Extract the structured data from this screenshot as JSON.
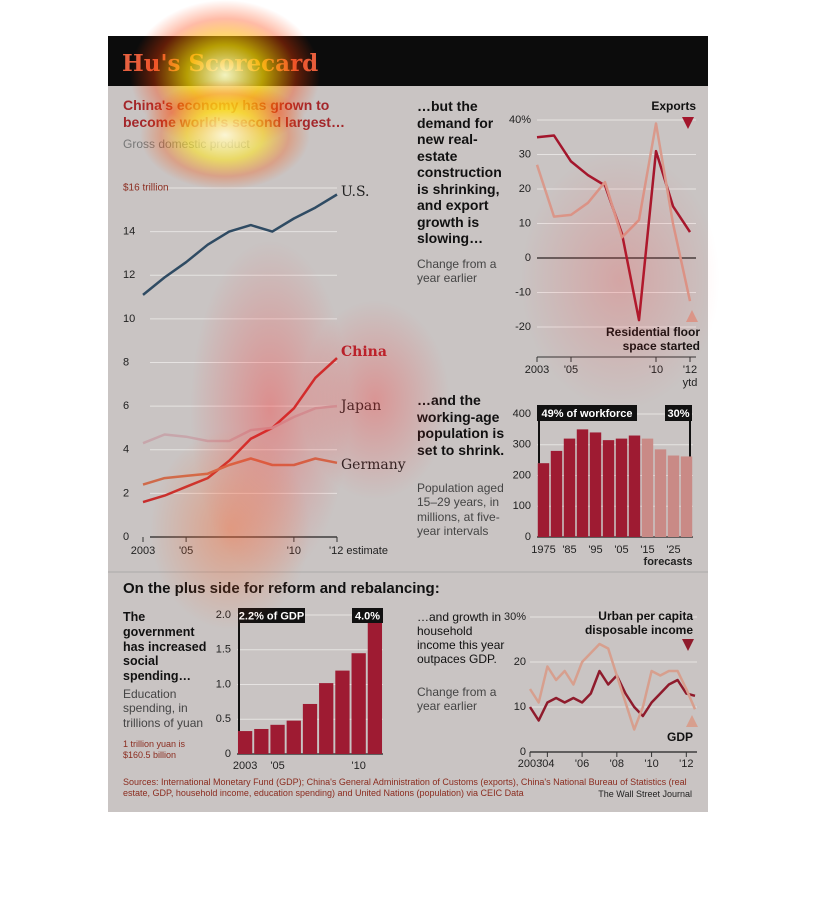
{
  "title": "Hu's Scorecard",
  "section_title": "On the plus side for reform and rebalancing:",
  "source": "Sources: International Monetary Fund (GDP); China's General Administration of Customs (exports), China's National Bureau of Statistics (real estate, GDP, household income, education spending) and United Nations (population) via CEIC Data",
  "credit": "The Wall Street Journal",
  "chart_data": [
    {
      "type": "line",
      "title": "China's economy has grown to become world's second largest…",
      "subtitle": "Gross domestic product",
      "x": [
        2003,
        2004,
        2005,
        2006,
        2007,
        2008,
        2009,
        2010,
        2011,
        2012
      ],
      "xlim": [
        2003,
        2012
      ],
      "xticks": [
        2003,
        {
          "value": 2005,
          "label": "'05"
        },
        {
          "value": 2010,
          "label": "'10"
        },
        {
          "value": 2012,
          "label": "'12 estimate"
        }
      ],
      "ylim": [
        0,
        16
      ],
      "yticks": [
        0,
        2,
        4,
        6,
        8,
        10,
        12,
        14,
        {
          "value": 16,
          "label": "$16 trillion"
        }
      ],
      "grid": true,
      "series": [
        {
          "name": "U.S.",
          "color": "#2f4b63",
          "values": [
            11.1,
            11.9,
            12.6,
            13.4,
            14.0,
            14.3,
            14.0,
            14.6,
            15.1,
            15.7
          ]
        },
        {
          "name": "China",
          "color": "#c72c2c",
          "values": [
            1.6,
            1.9,
            2.3,
            2.7,
            3.5,
            4.5,
            5.0,
            5.9,
            7.3,
            8.2
          ]
        },
        {
          "name": "Japan",
          "color": "#c7a6ab",
          "values": [
            4.3,
            4.7,
            4.6,
            4.4,
            4.4,
            4.9,
            5.0,
            5.5,
            5.9,
            6.0
          ]
        },
        {
          "name": "Germany",
          "color": "#cf6a4a",
          "values": [
            2.4,
            2.7,
            2.8,
            2.9,
            3.3,
            3.6,
            3.3,
            3.3,
            3.6,
            3.4
          ]
        }
      ]
    },
    {
      "type": "line",
      "title": "…but the demand for new real-estate construction is shrinking, and export growth is slowing…",
      "subtitle": "Change from a year earlier",
      "x": [
        2003,
        2004,
        2005,
        2006,
        2007,
        2008,
        2009,
        2010,
        2011,
        2012
      ],
      "xlim": [
        2003,
        2012
      ],
      "xticks": [
        2003,
        {
          "value": 2005,
          "label": "'05"
        },
        {
          "value": 2010,
          "label": "'10"
        },
        {
          "value": 2012,
          "label": "'12"
        }
      ],
      "xtick_note": "ytd",
      "ylim": [
        -20,
        40
      ],
      "yticks": [
        -20,
        -10,
        0,
        10,
        20,
        30,
        {
          "value": 40,
          "label": "40%"
        }
      ],
      "grid": true,
      "series": [
        {
          "name": "Exports",
          "color": "#a3162c",
          "values": [
            35,
            35.5,
            28,
            24,
            21,
            7,
            -18,
            31,
            15,
            7.5
          ]
        },
        {
          "name": "Residential floor space started",
          "color": "#d99a8c",
          "values": [
            27,
            12,
            12.5,
            16,
            22,
            6,
            11,
            39,
            10,
            -12.5
          ]
        }
      ]
    },
    {
      "type": "bar",
      "title": "…and the working-age population is set to shrink.",
      "subtitle": "Population aged 15–29 years, in millions, at five-year intervals",
      "categories": [
        "1975",
        null,
        "'85",
        null,
        "'95",
        null,
        "'05",
        null,
        "'15",
        null,
        "'25",
        null
      ],
      "values": [
        240,
        280,
        320,
        350,
        340,
        315,
        320,
        330,
        320,
        285,
        265,
        262
      ],
      "colors": [
        "#9e1b32",
        "#9e1b32",
        "#9e1b32",
        "#9e1b32",
        "#9e1b32",
        "#9e1b32",
        "#9e1b32",
        "#9e1b32",
        "#c98a86",
        "#c98a86",
        "#c98a86",
        "#c98a86"
      ],
      "ylim": [
        0,
        400
      ],
      "yticks": [
        0,
        100,
        200,
        300,
        400
      ],
      "grid": true,
      "annotations": [
        "49% of workforce",
        "30%",
        "forecasts"
      ]
    },
    {
      "type": "bar",
      "title": "The government has increased social spending…",
      "subtitle": "Education spending, in trillions of yuan",
      "note": "1 trillion yuan is $160.5 billion",
      "categories": [
        "2003",
        null,
        "'05",
        null,
        null,
        null,
        null,
        "'10",
        null
      ],
      "values": [
        0.33,
        0.36,
        0.42,
        0.48,
        0.72,
        1.02,
        1.2,
        1.45,
        2.0
      ],
      "color": "#9e1b32",
      "ylim": [
        0,
        2
      ],
      "yticks": [
        0,
        0.5,
        {
          "value": 1,
          "label": "1.0"
        },
        1.5,
        {
          "value": 2,
          "label": "2.0"
        }
      ],
      "grid": true,
      "annotations": [
        "2.2% of GDP",
        "4.0%"
      ]
    },
    {
      "type": "line",
      "title": "…and growth in household income this year outpaces GDP.",
      "subtitle": "Change from a year earlier",
      "x": [
        2003,
        2003.5,
        2004,
        2004.5,
        2005,
        2005.5,
        2006,
        2006.5,
        2007,
        2007.5,
        2008,
        2008.5,
        2009,
        2009.5,
        2010,
        2010.5,
        2011,
        2011.5,
        2012,
        2012.5
      ],
      "xlim": [
        2003,
        2012.5
      ],
      "xticks": [
        2003,
        {
          "value": 2004,
          "label": "'04"
        },
        {
          "value": 2006,
          "label": "'06"
        },
        {
          "value": 2008,
          "label": "'08"
        },
        {
          "value": 2010,
          "label": "'10"
        },
        {
          "value": 2012,
          "label": "'12"
        }
      ],
      "ylim": [
        0,
        30
      ],
      "yticks": [
        0,
        10,
        20,
        {
          "value": 30,
          "label": "30%"
        }
      ],
      "grid": true,
      "series": [
        {
          "name": "Urban per capita disposable income",
          "color": "#8f1b2c",
          "values": [
            10,
            7,
            11,
            12,
            11,
            12,
            11,
            13,
            18,
            15,
            17,
            13,
            10,
            8,
            11,
            13,
            15,
            16,
            13,
            12.5
          ]
        },
        {
          "name": "GDP",
          "color": "#d79f8e",
          "values": [
            14,
            11,
            19,
            16,
            18,
            15,
            20,
            22,
            24,
            23,
            17,
            11,
            5,
            10,
            18,
            17,
            18,
            18,
            14,
            9.5
          ]
        }
      ]
    }
  ]
}
